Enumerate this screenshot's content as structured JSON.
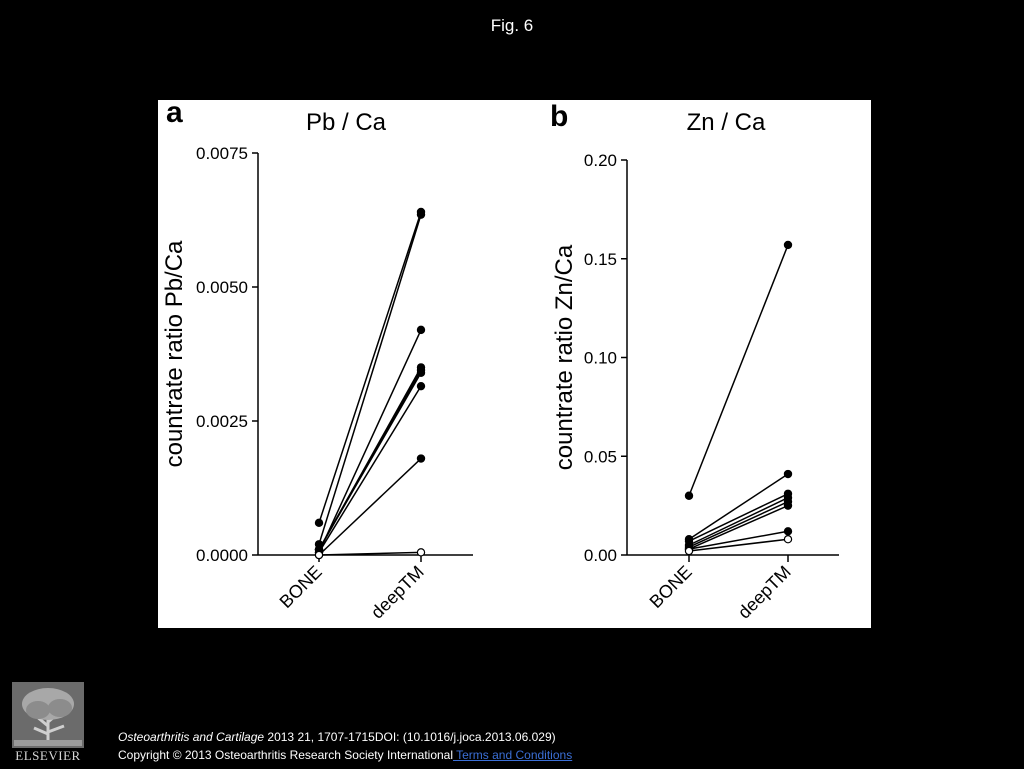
{
  "fig_label": "Fig. 6",
  "citation": {
    "journal": "Osteoarthritis and Cartilage",
    "details": " 2013 21, 1707-1715DOI: (10.1016/j.joca.2013.06.029)",
    "copyright": "Copyright © 2013 Osteoarthritis Research Society International",
    "terms_link": " Terms and Conditions"
  },
  "logo": {
    "text": "ELSEVIER"
  },
  "chart_data": [
    {
      "type": "line",
      "panel_letter": "a",
      "title": "Pb / Ca",
      "ylabel": "countrate ratio Pb/Ca",
      "xlabel": "",
      "categories": [
        "BONE",
        "deepTM"
      ],
      "ylim": [
        0,
        0.0075
      ],
      "yticks": [
        "0.0000",
        "0.0025",
        "0.0050",
        "0.0075"
      ],
      "grid": false,
      "series": [
        {
          "values": [
            0.0006,
            0.0064
          ],
          "marker": "filled"
        },
        {
          "values": [
            0.0002,
            0.00635
          ],
          "marker": "filled"
        },
        {
          "values": [
            5e-05,
            0.0042
          ],
          "marker": "filled"
        },
        {
          "values": [
            0.0001,
            0.0035
          ],
          "marker": "filled"
        },
        {
          "values": [
            0.0001,
            0.00345
          ],
          "marker": "filled"
        },
        {
          "values": [
            0.0001,
            0.0034
          ],
          "marker": "filled"
        },
        {
          "values": [
            5e-05,
            0.00315
          ],
          "marker": "filled"
        },
        {
          "values": [
            0.0,
            0.0018
          ],
          "marker": "filled"
        },
        {
          "values": [
            0.0,
            5e-05
          ],
          "marker": "open"
        }
      ]
    },
    {
      "type": "line",
      "panel_letter": "b",
      "title": "Zn / Ca",
      "ylabel": "countrate ratio Zn/Ca",
      "xlabel": "",
      "categories": [
        "BONE",
        "deepTM"
      ],
      "ylim": [
        0,
        0.2
      ],
      "yticks": [
        "0.00",
        "0.05",
        "0.10",
        "0.15",
        "0.20"
      ],
      "grid": false,
      "series": [
        {
          "values": [
            0.03,
            0.157
          ],
          "marker": "filled"
        },
        {
          "values": [
            0.008,
            0.041
          ],
          "marker": "filled"
        },
        {
          "values": [
            0.007,
            0.031
          ],
          "marker": "filled"
        },
        {
          "values": [
            0.005,
            0.029
          ],
          "marker": "filled"
        },
        {
          "values": [
            0.004,
            0.027
          ],
          "marker": "filled"
        },
        {
          "values": [
            0.003,
            0.025
          ],
          "marker": "filled"
        },
        {
          "values": [
            0.003,
            0.012
          ],
          "marker": "filled"
        },
        {
          "values": [
            0.002,
            0.008
          ],
          "marker": "open"
        }
      ]
    }
  ]
}
